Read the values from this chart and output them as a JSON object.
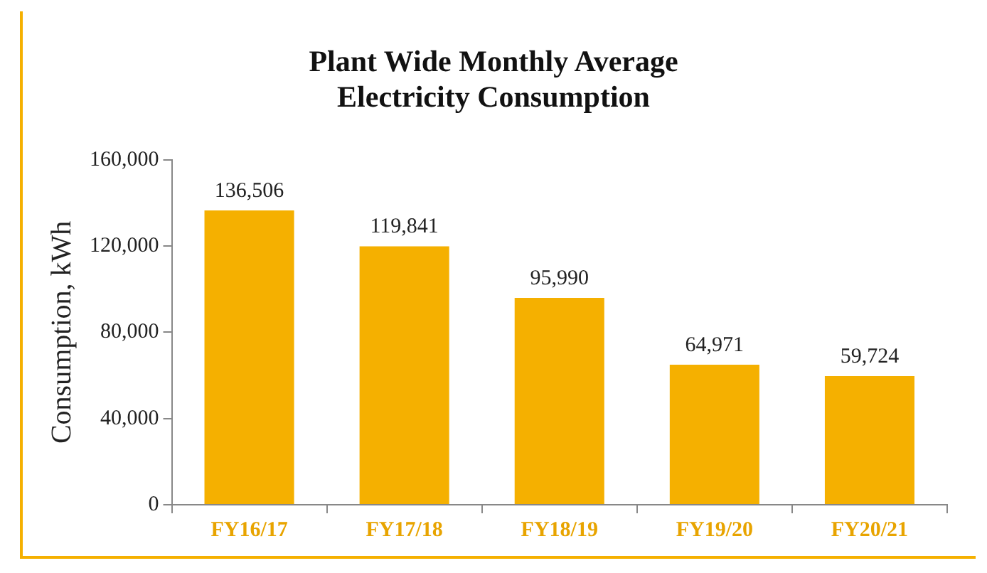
{
  "chart_data": {
    "type": "bar",
    "title": "Plant Wide Monthly Average\nElectricity Consumption",
    "ylabel": "Consumption, kWh",
    "categories": [
      "FY16/17",
      "FY17/18",
      "FY18/19",
      "FY19/20",
      "FY20/21"
    ],
    "values": [
      136506,
      119841,
      95990,
      64971,
      59724
    ],
    "value_labels": [
      "136,506",
      "119,841",
      "95,990",
      "64,971",
      "59,724"
    ],
    "color": "#f5b000",
    "ylim": [
      0,
      160000
    ],
    "yticks": [
      0,
      {
        "value": 40000,
        "label": "40,000"
      },
      {
        "value": 80000,
        "label": "80,000"
      },
      {
        "value": 120000,
        "label": "120,000"
      },
      {
        "value": 160000,
        "label": "160,000"
      }
    ],
    "legend": false
  }
}
